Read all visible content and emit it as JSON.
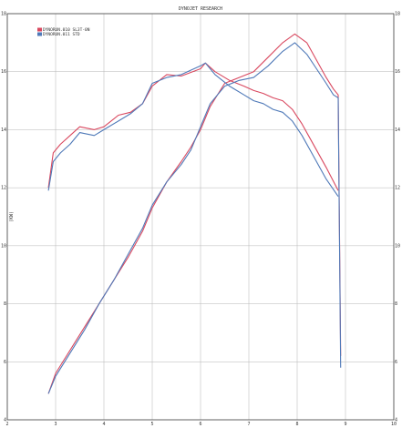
{
  "chart_data": {
    "type": "line",
    "title": "DYNOJET RESEARCH",
    "ylabel": "(KW)",
    "xlabel": "",
    "xlim": [
      2,
      10
    ],
    "ylim": [
      4,
      18
    ],
    "y2lim": [
      4,
      18
    ],
    "x_ticks": [
      2,
      3,
      4,
      5,
      6,
      7,
      8,
      9,
      10
    ],
    "y_ticks": [
      4,
      6,
      8,
      10,
      12,
      14,
      16,
      18
    ],
    "grid": true,
    "legend_position": "top-left",
    "series": [
      {
        "name": "DYNORUN.010 SL3T-0N",
        "color": "#d9485f",
        "curves": [
          {
            "kind": "torque",
            "x": [
              2.85,
              2.95,
              3.1,
              3.3,
              3.5,
              3.8,
              4.0,
              4.3,
              4.55,
              4.8,
              5.0,
              5.3,
              5.6,
              6.0,
              6.1,
              6.3,
              6.6,
              6.9,
              7.1,
              7.3,
              7.5,
              7.7,
              7.9,
              8.1,
              8.3,
              8.6,
              8.85
            ],
            "y": [
              12.0,
              13.2,
              13.5,
              13.8,
              14.1,
              14.0,
              14.1,
              14.5,
              14.6,
              14.9,
              15.5,
              15.9,
              15.85,
              16.1,
              16.3,
              16.0,
              15.7,
              15.5,
              15.35,
              15.25,
              15.1,
              15.0,
              14.7,
              14.2,
              13.6,
              12.7,
              11.9
            ]
          },
          {
            "kind": "power",
            "x": [
              2.85,
              3.0,
              3.3,
              3.6,
              3.9,
              4.2,
              4.5,
              4.8,
              5.0,
              5.3,
              5.6,
              5.8,
              6.0,
              6.2,
              6.5,
              6.8,
              7.1,
              7.4,
              7.7,
              7.95,
              8.2,
              8.4,
              8.6,
              8.75,
              8.85,
              8.9
            ],
            "y": [
              4.9,
              5.6,
              6.4,
              7.2,
              8.0,
              8.8,
              9.6,
              10.5,
              11.3,
              12.2,
              12.9,
              13.4,
              14.0,
              14.8,
              15.6,
              15.8,
              16.0,
              16.5,
              17.0,
              17.3,
              17.0,
              16.4,
              15.8,
              15.4,
              15.2,
              6.2
            ]
          }
        ]
      },
      {
        "name": "DYNORUN.011 STD",
        "color": "#4f79b8",
        "curves": [
          {
            "kind": "torque",
            "x": [
              2.85,
              2.95,
              3.1,
              3.3,
              3.5,
              3.8,
              4.0,
              4.3,
              4.55,
              4.8,
              5.0,
              5.3,
              5.6,
              6.0,
              6.1,
              6.3,
              6.6,
              6.9,
              7.1,
              7.3,
              7.5,
              7.7,
              7.9,
              8.1,
              8.3,
              8.6,
              8.85
            ],
            "y": [
              11.9,
              12.9,
              13.2,
              13.5,
              13.9,
              13.8,
              14.0,
              14.3,
              14.55,
              14.9,
              15.6,
              15.8,
              15.9,
              16.2,
              16.3,
              15.9,
              15.5,
              15.2,
              15.0,
              14.9,
              14.7,
              14.6,
              14.3,
              13.8,
              13.2,
              12.3,
              11.7
            ]
          },
          {
            "kind": "power",
            "x": [
              2.85,
              3.0,
              3.3,
              3.6,
              3.9,
              4.2,
              4.5,
              4.8,
              5.0,
              5.3,
              5.6,
              5.8,
              6.0,
              6.2,
              6.5,
              6.8,
              7.1,
              7.4,
              7.7,
              7.95,
              8.2,
              8.4,
              8.6,
              8.75,
              8.85,
              8.9
            ],
            "y": [
              4.9,
              5.5,
              6.3,
              7.1,
              8.0,
              8.8,
              9.7,
              10.6,
              11.4,
              12.2,
              12.8,
              13.3,
              14.1,
              14.9,
              15.5,
              15.7,
              15.8,
              16.2,
              16.7,
              17.0,
              16.6,
              16.1,
              15.6,
              15.2,
              15.1,
              5.8
            ]
          }
        ]
      }
    ]
  }
}
